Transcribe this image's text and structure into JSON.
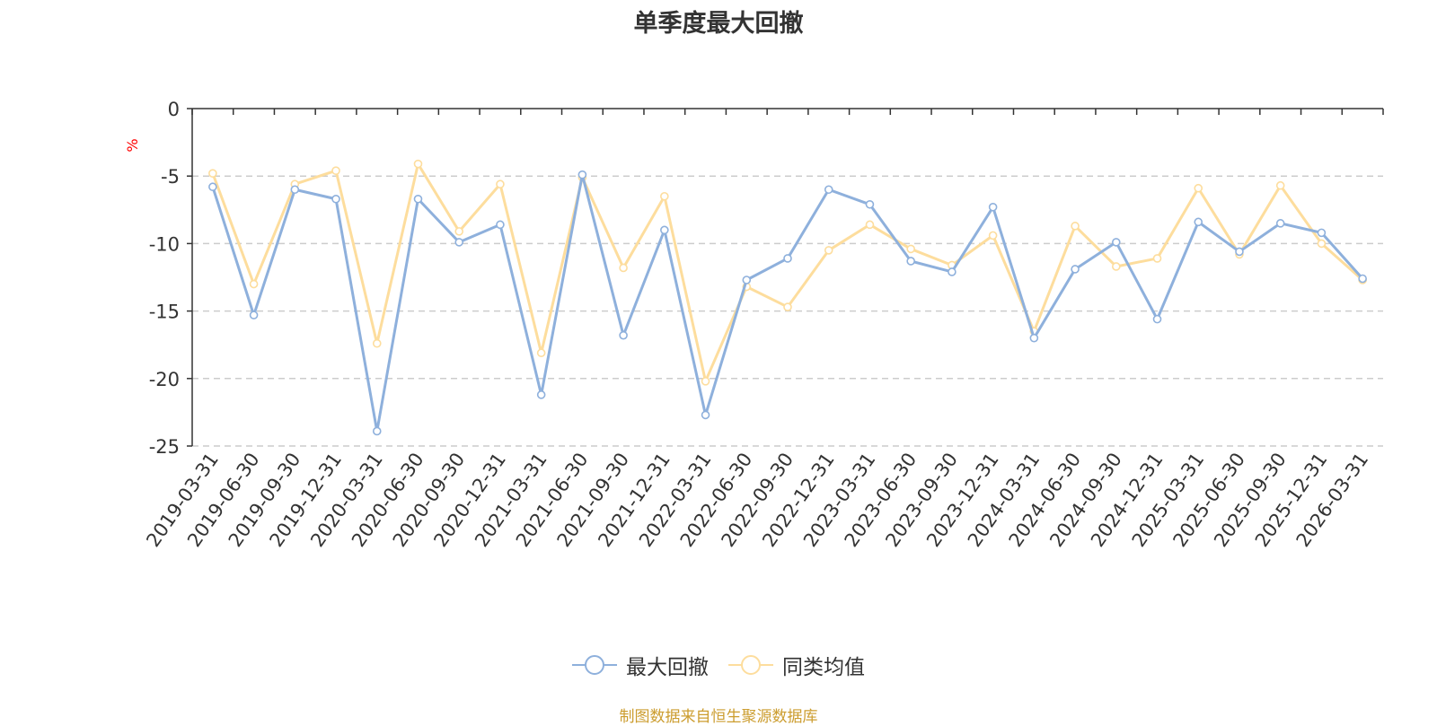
{
  "chart_data": {
    "type": "line",
    "title": "单季度最大回撤",
    "ylabel": "%",
    "xlabel": "",
    "ylim": [
      -25,
      0
    ],
    "yticks": [
      0,
      -5,
      -10,
      -15,
      -20,
      -25
    ],
    "grid": true,
    "legend_position": "bottom-center",
    "categories": [
      "2019-03-31",
      "2019-06-30",
      "2019-09-30",
      "2019-12-31",
      "2020-03-31",
      "2020-06-30",
      "2020-09-30",
      "2020-12-31",
      "2021-03-31",
      "2021-06-30",
      "2021-09-30",
      "2021-12-31",
      "2022-03-31",
      "2022-06-30",
      "2022-09-30",
      "2022-12-31",
      "2023-03-31",
      "2023-06-30",
      "2023-09-30",
      "2023-12-31",
      "2024-03-31",
      "2024-06-30",
      "2024-09-30",
      "2024-12-31",
      "2025-03-31",
      "2025-06-30",
      "2025-09-30",
      "2025-12-31",
      "2026-03-31"
    ],
    "series": [
      {
        "name": "最大回撤",
        "color": "#8eb0dc",
        "values": [
          -5.8,
          -15.3,
          -6.0,
          -6.7,
          -23.9,
          -6.7,
          -9.9,
          -8.6,
          -21.2,
          -4.9,
          -16.8,
          -9.0,
          -22.7,
          -12.7,
          -11.1,
          -6.0,
          -7.1,
          -11.3,
          -12.1,
          -7.3,
          -17.0,
          -11.9,
          -9.9,
          -15.6,
          -8.4,
          -10.6,
          -8.5,
          -9.2,
          -12.6
        ]
      },
      {
        "name": "同类均值",
        "color": "#fddd9d",
        "values": [
          -4.8,
          -13.0,
          -5.6,
          -4.6,
          -17.4,
          -4.1,
          -9.1,
          -5.6,
          -18.1,
          -5.1,
          -11.8,
          -6.5,
          -20.2,
          -13.2,
          -14.7,
          -10.5,
          -8.6,
          -10.4,
          -11.6,
          -9.4,
          -16.5,
          -8.7,
          -11.7,
          -11.1,
          -5.9,
          -10.8,
          -5.7,
          -10.0,
          -12.7
        ]
      }
    ],
    "source_note": "制图数据来自恒生聚源数据库"
  }
}
